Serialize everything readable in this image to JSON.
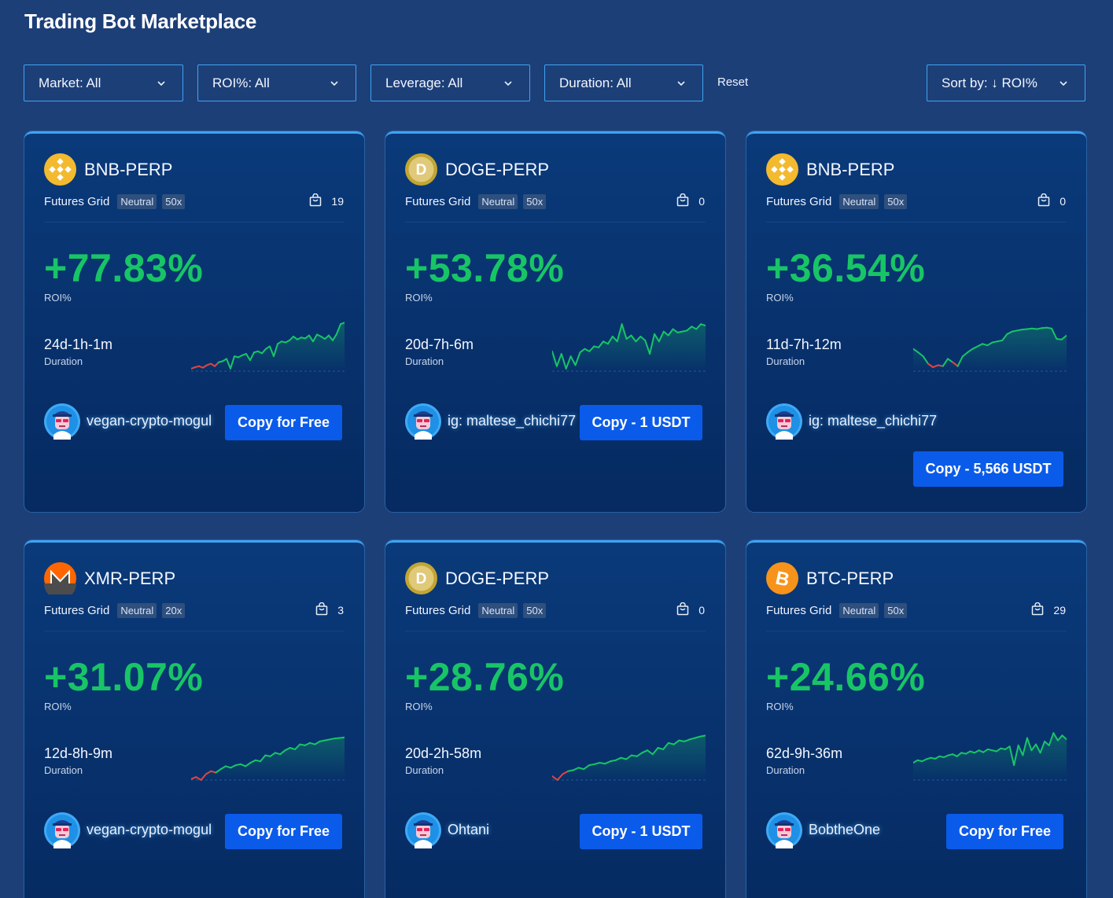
{
  "page": {
    "title": "Trading Bot Marketplace"
  },
  "filters": {
    "market": "Market: All",
    "roi": "ROI%: All",
    "leverage": "Leverage: All",
    "duration": "Duration: All",
    "reset": "Reset",
    "sort": "Sort by: ↓ ROI%"
  },
  "colors": {
    "background": "#1d3f78",
    "accent": "#3fa4f3",
    "positive": "#18c566",
    "negative": "#e04545",
    "button": "#0b5bea"
  },
  "cards": [
    {
      "pair": "BNB-PERP",
      "coin_icon": "bnb-icon",
      "type": "Futures Grid",
      "mode": "Neutral",
      "leverage": "50x",
      "copies": "19",
      "roi": "+77.83%",
      "roi_label": "ROI%",
      "duration": "24d-1h-1m",
      "duration_label": "Duration",
      "user": "vegan-crypto-mogul",
      "button": "Copy for Free",
      "trend": [
        0.05,
        0.08,
        0.1,
        0.07,
        0.12,
        0.15,
        0.1,
        0.18,
        0.2,
        0.25,
        0.05,
        0.3,
        0.28,
        0.32,
        0.35,
        0.22,
        0.38,
        0.4,
        0.36,
        0.45,
        0.5,
        0.3,
        0.55,
        0.6,
        0.58,
        0.62,
        0.7,
        0.64,
        0.68,
        0.66,
        0.72,
        0.6,
        0.74,
        0.7,
        0.65,
        0.72,
        0.62,
        0.75,
        0.95,
        0.98
      ]
    },
    {
      "pair": "DOGE-PERP",
      "coin_icon": "doge-icon",
      "type": "Futures Grid",
      "mode": "Neutral",
      "leverage": "50x",
      "copies": "0",
      "roi": "+53.78%",
      "roi_label": "ROI%",
      "duration": "20d-7h-6m",
      "duration_label": "Duration",
      "user": "ig: maltese_chichi77",
      "button": "Copy - 1 USDT",
      "trend": [
        0.4,
        0.1,
        0.35,
        0.05,
        0.3,
        0.12,
        0.38,
        0.45,
        0.4,
        0.5,
        0.48,
        0.6,
        0.55,
        0.7,
        0.6,
        0.95,
        0.65,
        0.72,
        0.6,
        0.7,
        0.62,
        0.35,
        0.75,
        0.6,
        0.8,
        0.72,
        0.85,
        0.78,
        0.8,
        0.82,
        0.9,
        0.85,
        0.95,
        0.92
      ]
    },
    {
      "pair": "BNB-PERP",
      "coin_icon": "bnb-icon",
      "type": "Futures Grid",
      "mode": "Neutral",
      "leverage": "50x",
      "copies": "0",
      "roi": "+36.54%",
      "roi_label": "ROI%",
      "duration": "11d-7h-12m",
      "duration_label": "Duration",
      "user": "ig: maltese_chichi77",
      "button": "Copy - 5,566 USDT",
      "trend": [
        0.45,
        0.38,
        0.3,
        0.15,
        0.08,
        0.12,
        0.1,
        0.25,
        0.18,
        0.1,
        0.3,
        0.38,
        0.45,
        0.5,
        0.55,
        0.52,
        0.58,
        0.6,
        0.62,
        0.75,
        0.8,
        0.82,
        0.84,
        0.85,
        0.86,
        0.85,
        0.87,
        0.88,
        0.86,
        0.65,
        0.64,
        0.72
      ]
    },
    {
      "pair": "XMR-PERP",
      "coin_icon": "monero-icon",
      "type": "Futures Grid",
      "mode": "Neutral",
      "leverage": "20x",
      "copies": "3",
      "roi": "+31.07%",
      "roi_label": "ROI%",
      "duration": "12d-8h-9m",
      "duration_label": "Duration",
      "user": "vegan-crypto-mogul",
      "button": "Copy for Free",
      "trend": [
        0.02,
        0.06,
        0.0,
        0.12,
        0.18,
        0.15,
        0.22,
        0.28,
        0.25,
        0.3,
        0.32,
        0.28,
        0.35,
        0.4,
        0.38,
        0.5,
        0.48,
        0.55,
        0.52,
        0.6,
        0.65,
        0.62,
        0.72,
        0.7,
        0.75,
        0.72,
        0.78,
        0.8,
        0.82,
        0.84,
        0.85,
        0.86
      ]
    },
    {
      "pair": "DOGE-PERP",
      "coin_icon": "doge-icon",
      "type": "Futures Grid",
      "mode": "Neutral",
      "leverage": "50x",
      "copies": "0",
      "roi": "+28.76%",
      "roi_label": "ROI%",
      "duration": "20d-2h-58m",
      "duration_label": "Duration",
      "user": "Ohtani",
      "button": "Copy - 1 USDT",
      "trend": [
        0.08,
        0.0,
        0.12,
        0.18,
        0.2,
        0.25,
        0.22,
        0.3,
        0.32,
        0.35,
        0.33,
        0.38,
        0.4,
        0.45,
        0.42,
        0.5,
        0.48,
        0.55,
        0.6,
        0.52,
        0.65,
        0.62,
        0.75,
        0.72,
        0.8,
        0.78,
        0.82,
        0.85,
        0.88,
        0.9
      ]
    },
    {
      "pair": "BTC-PERP",
      "coin_icon": "bitcoin-icon",
      "type": "Futures Grid",
      "mode": "Neutral",
      "leverage": "50x",
      "copies": "29",
      "roi": "+24.66%",
      "roi_label": "ROI%",
      "duration": "62d-9h-36m",
      "duration_label": "Duration",
      "user": "BobtheOne",
      "button": "Copy for Free",
      "trend": [
        0.35,
        0.4,
        0.38,
        0.42,
        0.45,
        0.43,
        0.48,
        0.46,
        0.5,
        0.52,
        0.48,
        0.55,
        0.53,
        0.58,
        0.55,
        0.6,
        0.56,
        0.62,
        0.6,
        0.58,
        0.64,
        0.62,
        0.68,
        0.3,
        0.7,
        0.5,
        0.85,
        0.6,
        0.72,
        0.55,
        0.78,
        0.7,
        0.95,
        0.8,
        0.9,
        0.82
      ]
    }
  ]
}
